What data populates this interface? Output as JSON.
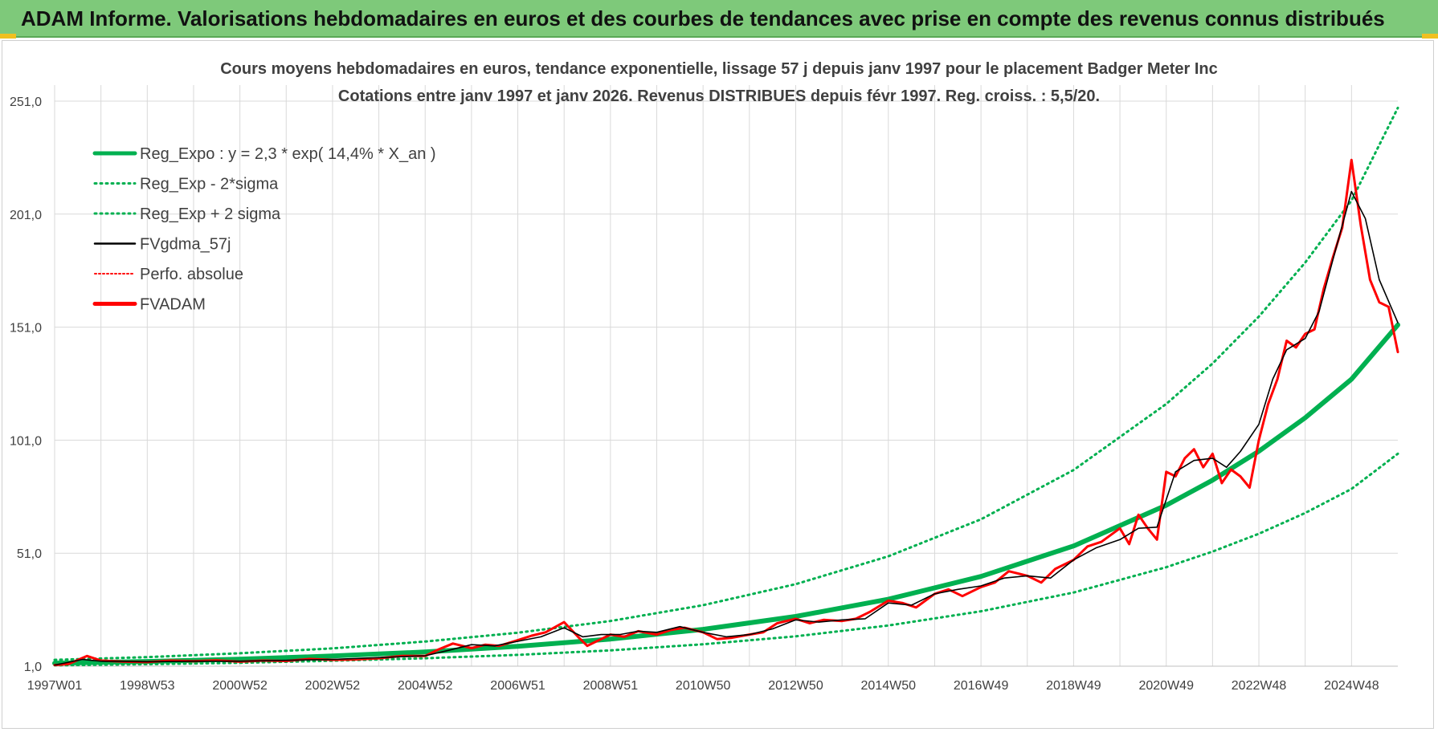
{
  "banner": {
    "title": "ADAM Informe. Valorisations hebdomadaires en euros et des courbes de tendances avec prise en compte des revenus connus distribués"
  },
  "colors": {
    "banner_bg": "#7ec97a",
    "reg_expo": "#00b050",
    "fvgdma": "#000000",
    "fvadam": "#ff0000",
    "grid": "#d9d9d9"
  },
  "chart_data": {
    "type": "line",
    "title_line1": "Cours moyens hebdomadaires en euros, tendance exponentielle, lissage 57 j depuis janv 1997  pour le placement Badger Meter Inc",
    "title_line2": "Cotations entre janv 1997 et janv 2026. Revenus DISTRIBUES depuis févr 1997. Reg. croiss. : 5,5/20.",
    "x_range": [
      1997.0,
      2026.0
    ],
    "ylim": [
      1,
      251
    ],
    "yticks": [
      "1,0",
      "51,0",
      "101,0",
      "151,0",
      "201,0",
      "251,0"
    ],
    "ytick_values": [
      1,
      51,
      101,
      151,
      201,
      251
    ],
    "xticks": [
      "1997W01",
      "1998W53",
      "2000W52",
      "2002W52",
      "2004W52",
      "2006W51",
      "2008W51",
      "2010W50",
      "2012W50",
      "2014W50",
      "2016W49",
      "2018W49",
      "2020W49",
      "2022W48",
      "2024W48"
    ],
    "xtick_years": [
      1997.0,
      1999.0,
      2001.0,
      2003.0,
      2005.0,
      2007.0,
      2009.0,
      2011.0,
      2013.0,
      2015.0,
      2017.0,
      2019.0,
      2021.0,
      2023.0,
      2025.0
    ],
    "legend": [
      {
        "key": "reg_expo",
        "label": "Reg_Expo : y = 2,3 * exp( 14,4% *  X_an )",
        "style": "thick-green"
      },
      {
        "key": "reg_minus",
        "label": "Reg_Exp - 2*sigma",
        "style": "dotted-green"
      },
      {
        "key": "reg_plus",
        "label": "Reg_Exp + 2 sigma",
        "style": "dotted-green"
      },
      {
        "key": "fvgdma",
        "label": "FVgdma_57j",
        "style": "thin-black"
      },
      {
        "key": "perfo",
        "label": "Perfo. absolue",
        "style": "dotted-red"
      },
      {
        "key": "fvadam",
        "label": "FVADAM",
        "style": "thick-red"
      }
    ],
    "series": [
      {
        "name": "Reg_Expo",
        "x": [
          1997.0,
          1999.0,
          2001.0,
          2003.0,
          2005.0,
          2007.0,
          2009.0,
          2011.0,
          2013.0,
          2015.0,
          2017.0,
          2019.0,
          2021.0,
          2022.0,
          2023.0,
          2024.0,
          2025.0,
          2026.0
        ],
        "values": [
          2.3,
          3.1,
          4.1,
          5.5,
          7.3,
          9.8,
          13.0,
          17.3,
          23.0,
          30.6,
          40.7,
          54.2,
          72.2,
          83.3,
          96.1,
          110.9,
          128.0,
          152.0
        ]
      },
      {
        "name": "Reg_Exp - 2*sigma",
        "x": [
          1997.0,
          1999.0,
          2001.0,
          2003.0,
          2005.0,
          2007.0,
          2009.0,
          2011.0,
          2013.0,
          2015.0,
          2017.0,
          2019.0,
          2021.0,
          2022.0,
          2023.0,
          2024.0,
          2025.0,
          2026.0
        ],
        "values": [
          1.4,
          1.9,
          2.5,
          3.4,
          4.5,
          6.0,
          8.0,
          10.7,
          14.2,
          19.0,
          25.3,
          33.6,
          44.8,
          51.7,
          59.6,
          68.8,
          79.4,
          95.0
        ]
      },
      {
        "name": "Reg_Exp + 2 sigma",
        "x": [
          1997.0,
          1999.0,
          2001.0,
          2003.0,
          2005.0,
          2007.0,
          2009.0,
          2011.0,
          2013.0,
          2015.0,
          2017.0,
          2019.0,
          2021.0,
          2022.0,
          2023.0,
          2024.0,
          2025.0,
          2026.0
        ],
        "values": [
          3.8,
          5.0,
          6.7,
          8.9,
          11.9,
          15.8,
          21.0,
          28.0,
          37.3,
          49.6,
          66.0,
          87.8,
          117.0,
          134.9,
          155.7,
          179.6,
          207.0,
          248.0
        ]
      },
      {
        "name": "FVgdma_57j",
        "x": [
          1997.0,
          1997.6,
          1998.0,
          1999.0,
          2000.0,
          2001.0,
          2002.0,
          2003.0,
          2004.0,
          2005.0,
          2005.5,
          2006.0,
          2006.5,
          2007.0,
          2007.5,
          2008.0,
          2008.4,
          2008.8,
          2009.2,
          2009.6,
          2010.0,
          2010.5,
          2011.0,
          2011.5,
          2012.0,
          2012.5,
          2013.0,
          2013.5,
          2014.0,
          2014.5,
          2015.0,
          2015.5,
          2016.0,
          2016.5,
          2017.0,
          2017.5,
          2018.0,
          2018.5,
          2019.0,
          2019.5,
          2020.0,
          2020.4,
          2020.8,
          2021.2,
          2021.6,
          2022.0,
          2022.3,
          2022.6,
          2023.0,
          2023.3,
          2023.6,
          2024.0,
          2024.3,
          2024.6,
          2025.0,
          2025.3,
          2025.6,
          2026.0
        ],
        "values": [
          1.5,
          4.0,
          3.2,
          3.0,
          3.2,
          3.2,
          3.6,
          4.0,
          4.8,
          5.6,
          8.0,
          10.5,
          10.0,
          12.0,
          14.0,
          18.0,
          14.0,
          15.0,
          15.0,
          16.5,
          16.0,
          18.5,
          16.0,
          14.0,
          15.0,
          17.5,
          21.5,
          20.5,
          21.5,
          22.0,
          29.0,
          28.0,
          33.0,
          35.0,
          36.5,
          40.0,
          41.0,
          40.0,
          48.0,
          53.5,
          57.0,
          62.0,
          62.5,
          87.0,
          92.0,
          93.0,
          89.0,
          96.0,
          108.0,
          128.0,
          141.0,
          146.0,
          158.0,
          181.0,
          211.0,
          199.0,
          172.0,
          153.0
        ]
      },
      {
        "name": "FVADAM",
        "x": [
          1997.0,
          1997.3,
          1997.7,
          1998.0,
          1998.5,
          1999.0,
          1999.5,
          2000.0,
          2000.5,
          2001.0,
          2001.5,
          2002.0,
          2002.5,
          2003.0,
          2003.5,
          2004.0,
          2004.5,
          2005.0,
          2005.3,
          2005.6,
          2006.0,
          2006.3,
          2006.6,
          2007.0,
          2007.3,
          2007.6,
          2008.0,
          2008.3,
          2008.5,
          2008.7,
          2009.0,
          2009.3,
          2009.6,
          2010.0,
          2010.3,
          2010.6,
          2011.0,
          2011.3,
          2011.6,
          2012.0,
          2012.3,
          2012.6,
          2013.0,
          2013.3,
          2013.6,
          2014.0,
          2014.3,
          2014.6,
          2015.0,
          2015.3,
          2015.6,
          2016.0,
          2016.3,
          2016.6,
          2017.0,
          2017.3,
          2017.6,
          2018.0,
          2018.3,
          2018.6,
          2019.0,
          2019.3,
          2019.6,
          2020.0,
          2020.2,
          2020.4,
          2020.6,
          2020.8,
          2021.0,
          2021.2,
          2021.4,
          2021.6,
          2021.8,
          2022.0,
          2022.2,
          2022.4,
          2022.6,
          2022.8,
          2023.0,
          2023.2,
          2023.4,
          2023.6,
          2023.8,
          2024.0,
          2024.2,
          2024.4,
          2024.6,
          2024.8,
          2025.0,
          2025.2,
          2025.4,
          2025.6,
          2025.8,
          2026.0
        ],
        "values": [
          1.5,
          2.0,
          5.5,
          3.5,
          3.0,
          2.8,
          3.5,
          3.2,
          3.6,
          3.0,
          3.5,
          3.3,
          4.2,
          3.8,
          4.0,
          4.5,
          5.5,
          5.5,
          8.5,
          11.0,
          9.0,
          10.5,
          10.0,
          12.5,
          14.5,
          16.0,
          20.5,
          14.0,
          10.0,
          12.0,
          15.0,
          14.0,
          16.5,
          15.0,
          17.0,
          18.0,
          16.0,
          13.0,
          13.5,
          15.0,
          16.0,
          20.0,
          22.0,
          20.0,
          21.5,
          21.0,
          22.0,
          25.0,
          30.0,
          29.0,
          27.0,
          33.0,
          35.0,
          32.0,
          36.0,
          38.0,
          43.0,
          41.0,
          38.0,
          44.0,
          48.0,
          54.0,
          56.0,
          62.0,
          55.0,
          68.0,
          62.0,
          57.0,
          87.0,
          85.0,
          93.0,
          97.0,
          89.0,
          95.0,
          82.0,
          88.0,
          85.0,
          80.0,
          101.0,
          117.0,
          128.0,
          145.0,
          142.0,
          148.0,
          150.0,
          168.0,
          182.0,
          195.0,
          225.0,
          196.0,
          172.0,
          162.0,
          160.0,
          140.0
        ]
      }
    ]
  }
}
